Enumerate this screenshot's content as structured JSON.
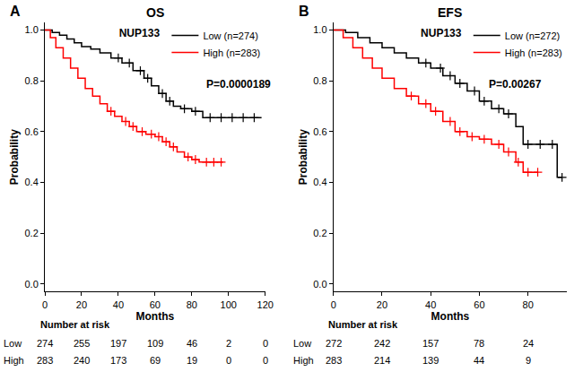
{
  "chart_data": [
    {
      "type": "line",
      "label": "A",
      "title": "OS",
      "legend_title": "NUP133",
      "annotations": [
        "P=0.0000189"
      ],
      "x_label": "Months",
      "y_label": "Probability",
      "xlim": [
        0,
        120
      ],
      "xticks": [
        0,
        20,
        40,
        60,
        80,
        100,
        120
      ],
      "ylim": [
        -0.03,
        1.03
      ],
      "yticks": [
        {
          "value": 0,
          "label": "0.0"
        },
        {
          "value": 0.2,
          "label": "0.2"
        },
        {
          "value": 0.4,
          "label": "0.4"
        },
        {
          "value": 0.6,
          "label": "0.6"
        },
        {
          "value": 0.8,
          "label": "0.8"
        },
        {
          "value": 1,
          "label": "1.0"
        }
      ],
      "legend": "upper right",
      "series": [
        {
          "name": "Low (n=274)",
          "color": "#000000",
          "line_style": "step",
          "marker": "cross",
          "x": [
            0,
            4,
            8,
            12,
            16,
            20,
            25,
            30,
            36,
            42,
            48,
            54,
            58,
            62,
            66,
            70,
            74,
            80,
            86,
            118
          ],
          "values": [
            1,
            0.99,
            0.98,
            0.965,
            0.95,
            0.935,
            0.925,
            0.91,
            0.89,
            0.87,
            0.84,
            0.81,
            0.78,
            0.75,
            0.72,
            0.7,
            0.69,
            0.68,
            0.655,
            0.655
          ],
          "censored": {
            "x": [
              40,
              46,
              52,
              56,
              64,
              68,
              76,
              82,
              90,
              96,
              102,
              108,
              114
            ],
            "values": [
              0.89,
              0.87,
              0.84,
              0.81,
              0.75,
              0.72,
              0.69,
              0.68,
              0.655,
              0.655,
              0.655,
              0.655,
              0.655
            ]
          }
        },
        {
          "name": "High (n=283)",
          "color": "#ff0000",
          "line_style": "step",
          "marker": "cross",
          "x": [
            0,
            3,
            6,
            10,
            14,
            18,
            22,
            26,
            30,
            34,
            38,
            42,
            46,
            50,
            55,
            60,
            64,
            68,
            72,
            76,
            80,
            84,
            97
          ],
          "values": [
            1,
            0.97,
            0.93,
            0.89,
            0.85,
            0.81,
            0.77,
            0.74,
            0.71,
            0.68,
            0.66,
            0.64,
            0.62,
            0.6,
            0.59,
            0.58,
            0.56,
            0.54,
            0.52,
            0.5,
            0.49,
            0.48,
            0.48
          ],
          "censored": {
            "x": [
              36,
              44,
              48,
              53,
              58,
              62,
              66,
              70,
              78,
              82,
              88,
              92,
              96
            ],
            "values": [
              0.68,
              0.64,
              0.62,
              0.6,
              0.59,
              0.58,
              0.56,
              0.54,
              0.5,
              0.49,
              0.48,
              0.48,
              0.48
            ]
          }
        }
      ],
      "risk_table": {
        "title": "Number at risk",
        "times": [
          0,
          20,
          40,
          60,
          80,
          100,
          120
        ],
        "rows": [
          {
            "name": "Low",
            "values": [
              274,
              255,
              197,
              109,
              46,
              2,
              0
            ]
          },
          {
            "name": "High",
            "values": [
              283,
              240,
              173,
              69,
              19,
              0,
              0
            ]
          }
        ]
      }
    },
    {
      "type": "line",
      "label": "B",
      "title": "EFS",
      "legend_title": "NUP133",
      "annotations": [
        "P=0.00267"
      ],
      "x_label": "Months",
      "y_label": "Probability",
      "xlim": [
        0,
        96
      ],
      "xticks": [
        0,
        20,
        40,
        60,
        80
      ],
      "ylim": [
        -0.03,
        1.03
      ],
      "yticks": [
        {
          "value": 0,
          "label": "0.0"
        },
        {
          "value": 0.2,
          "label": "0.2"
        },
        {
          "value": 0.4,
          "label": "0.4"
        },
        {
          "value": 0.6,
          "label": "0.6"
        },
        {
          "value": 0.8,
          "label": "0.8"
        },
        {
          "value": 1,
          "label": "1.0"
        }
      ],
      "legend": "upper right",
      "series": [
        {
          "name": "Low (n=272)",
          "color": "#000000",
          "line_style": "step",
          "marker": "cross",
          "x": [
            0,
            5,
            10,
            15,
            20,
            25,
            30,
            35,
            40,
            45,
            50,
            55,
            60,
            65,
            70,
            75,
            78,
            92,
            94
          ],
          "values": [
            1,
            0.99,
            0.97,
            0.95,
            0.93,
            0.91,
            0.89,
            0.87,
            0.85,
            0.82,
            0.79,
            0.76,
            0.72,
            0.69,
            0.67,
            0.62,
            0.55,
            0.42,
            0.42
          ],
          "censored": {
            "x": [
              38,
              44,
              48,
              52,
              58,
              62,
              68,
              72,
              80,
              85,
              90,
              94
            ],
            "values": [
              0.87,
              0.85,
              0.82,
              0.79,
              0.76,
              0.72,
              0.69,
              0.67,
              0.55,
              0.55,
              0.55,
              0.42
            ]
          }
        },
        {
          "name": "High (n=283)",
          "color": "#ff0000",
          "line_style": "step",
          "marker": "cross",
          "x": [
            0,
            4,
            8,
            12,
            16,
            20,
            25,
            30,
            35,
            40,
            45,
            50,
            55,
            60,
            65,
            70,
            75,
            78,
            84
          ],
          "values": [
            1,
            0.97,
            0.93,
            0.89,
            0.85,
            0.81,
            0.77,
            0.74,
            0.71,
            0.68,
            0.64,
            0.6,
            0.58,
            0.57,
            0.55,
            0.52,
            0.48,
            0.44,
            0.44
          ],
          "censored": {
            "x": [
              32,
              38,
              42,
              48,
              52,
              57,
              62,
              68,
              72,
              76,
              80,
              84
            ],
            "values": [
              0.74,
              0.71,
              0.68,
              0.64,
              0.6,
              0.58,
              0.57,
              0.55,
              0.52,
              0.48,
              0.44,
              0.44
            ]
          }
        }
      ],
      "risk_table": {
        "title": "Number at risk",
        "times": [
          0,
          20,
          40,
          60,
          80
        ],
        "rows": [
          {
            "name": "Low",
            "values": [
              272,
              242,
              157,
              78,
              24
            ]
          },
          {
            "name": "High",
            "values": [
              283,
              214,
              139,
              44,
              9
            ]
          }
        ]
      }
    }
  ]
}
